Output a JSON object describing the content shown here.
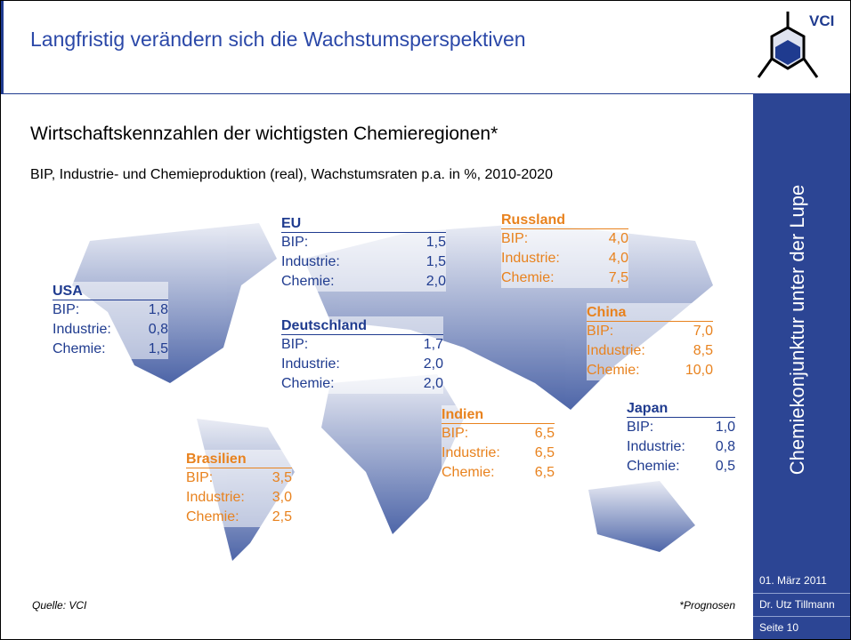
{
  "header": {
    "title": "Langfristig verändern sich die Wachstumsperspektiven",
    "logo": "VCI"
  },
  "heading": "Wirtschaftskennzahlen der wichtigsten Chemieregionen*",
  "subtitle": "BIP, Industrie- und Chemieproduktion (real), Wachstumsraten p.a. in %, 2010-2020",
  "regions": [
    {
      "name": "EU",
      "rows": [
        [
          "BIP:",
          "1,5"
        ],
        [
          "Industrie:",
          "1,5"
        ],
        [
          "Chemie:",
          "2,0"
        ]
      ]
    },
    {
      "name": "Russland",
      "rows": [
        [
          "BIP:",
          "4,0"
        ],
        [
          "Industrie:",
          "4,0"
        ],
        [
          "Chemie:",
          "7,5"
        ]
      ]
    },
    {
      "name": "USA",
      "rows": [
        [
          "BIP:",
          "1,8"
        ],
        [
          "Industrie:",
          "0,8"
        ],
        [
          "Chemie:",
          "1,5"
        ]
      ]
    },
    {
      "name": "Deutschland",
      "rows": [
        [
          "BIP:",
          "1,7"
        ],
        [
          "Industrie:",
          "2,0"
        ],
        [
          "Chemie:",
          "2,0"
        ]
      ]
    },
    {
      "name": "China",
      "rows": [
        [
          "BIP:",
          "7,0"
        ],
        [
          "Industrie:",
          "8,5"
        ],
        [
          "Chemie:",
          "10,0"
        ]
      ]
    },
    {
      "name": "Indien",
      "rows": [
        [
          "BIP:",
          "6,5"
        ],
        [
          "Industrie:",
          "6,5"
        ],
        [
          "Chemie:",
          "6,5"
        ]
      ]
    },
    {
      "name": "Japan",
      "rows": [
        [
          "BIP:",
          "1,0"
        ],
        [
          "Industrie:",
          "0,8"
        ],
        [
          "Chemie:",
          "0,5"
        ]
      ]
    },
    {
      "name": "Brasilien",
      "rows": [
        [
          "BIP:",
          "3,5"
        ],
        [
          "Industrie:",
          "3,0"
        ],
        [
          "Chemie:",
          "2,5"
        ]
      ]
    }
  ],
  "footer": {
    "source": "Quelle: VCI",
    "note": "*Prognosen"
  },
  "sidebar": {
    "text": "Chemiekonjunktur unter der Lupe",
    "date": "01. März 2011",
    "author": "Dr. Utz Tillmann",
    "page": "Seite 10"
  }
}
